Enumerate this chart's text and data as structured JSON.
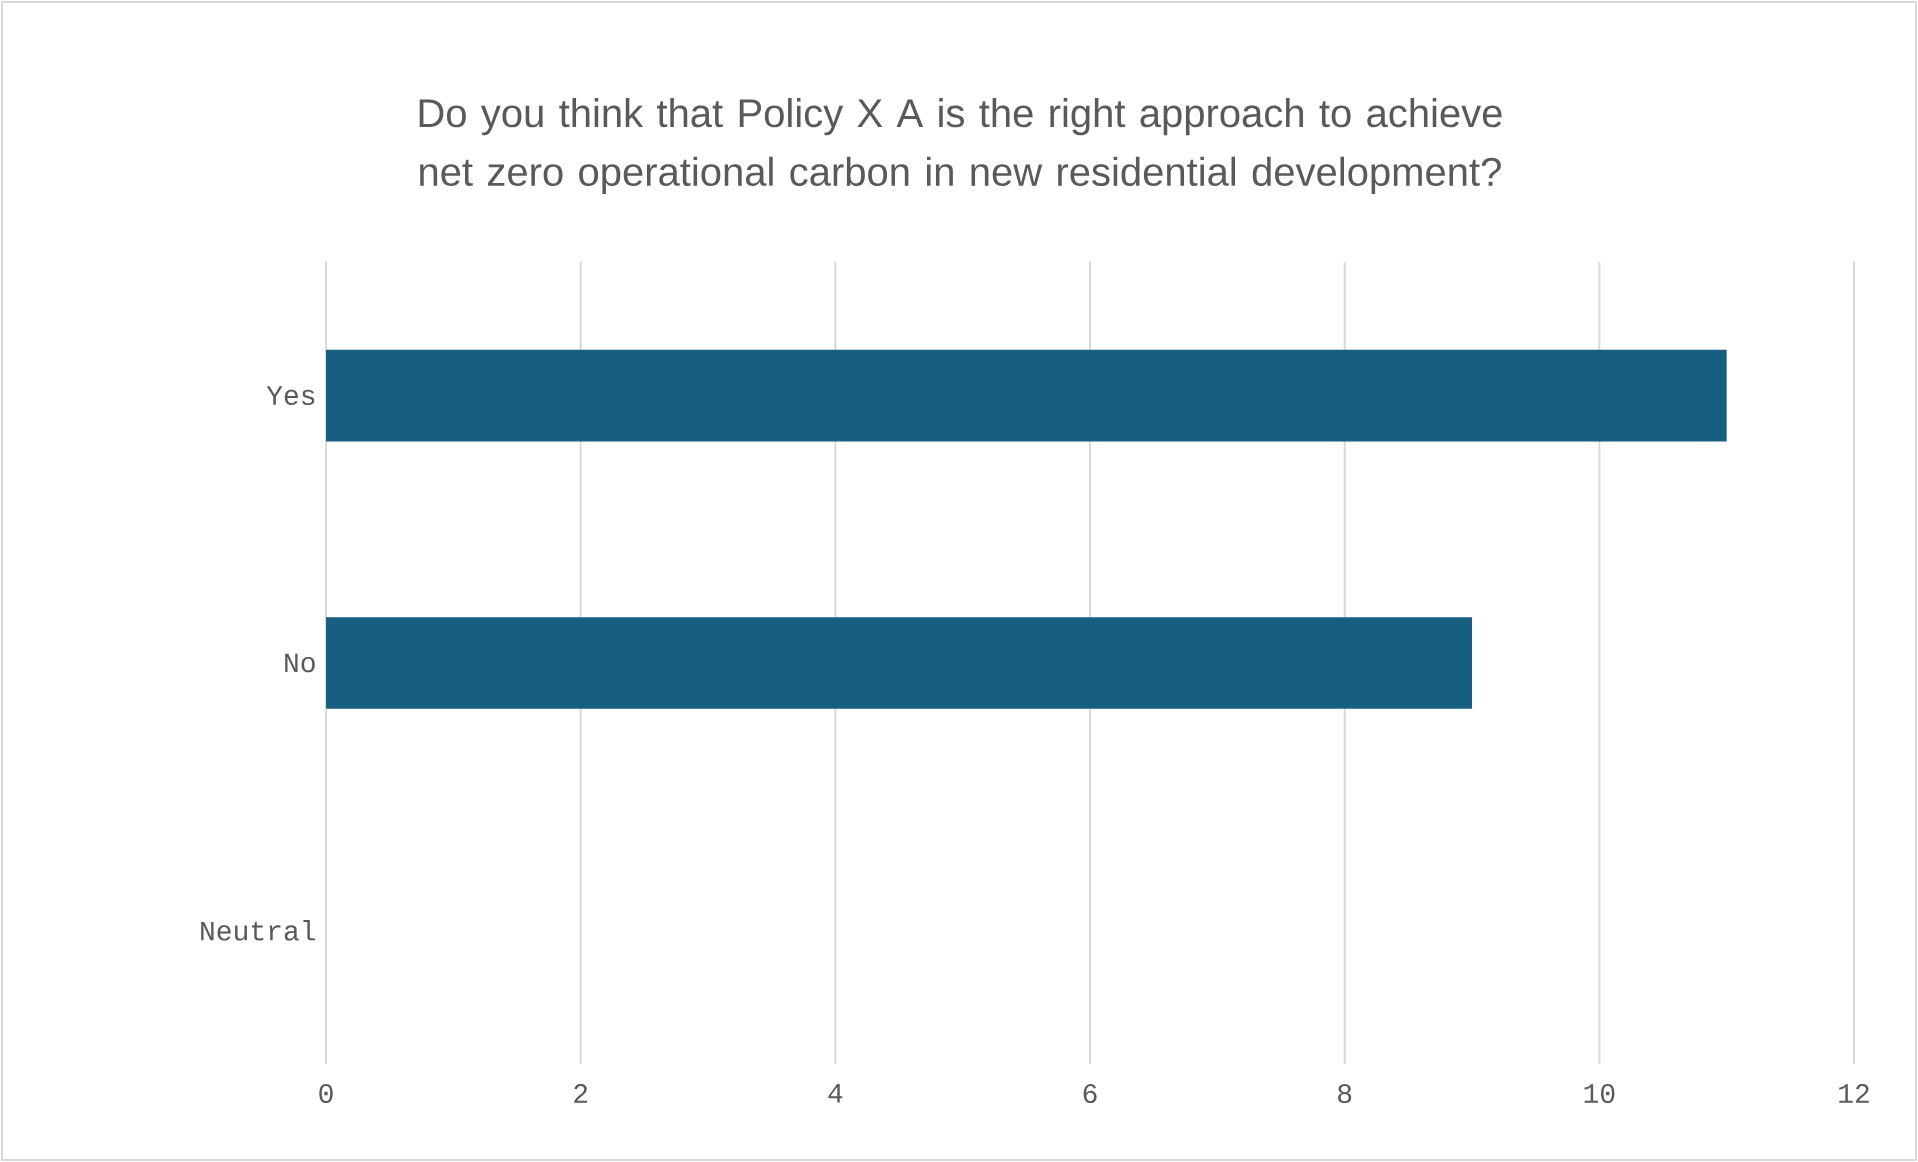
{
  "chart_data": {
    "type": "bar",
    "orientation": "horizontal",
    "title": "Do you think that Policy X A is the right approach to achieve net zero operational carbon in new residential development?",
    "categories": [
      "Yes",
      "No",
      "Neutral"
    ],
    "values": [
      11,
      9,
      0
    ],
    "color": "#175f80",
    "xlim": [
      0,
      12
    ],
    "xticks": [
      0,
      2,
      4,
      6,
      8,
      10,
      12
    ],
    "grid": "x"
  }
}
